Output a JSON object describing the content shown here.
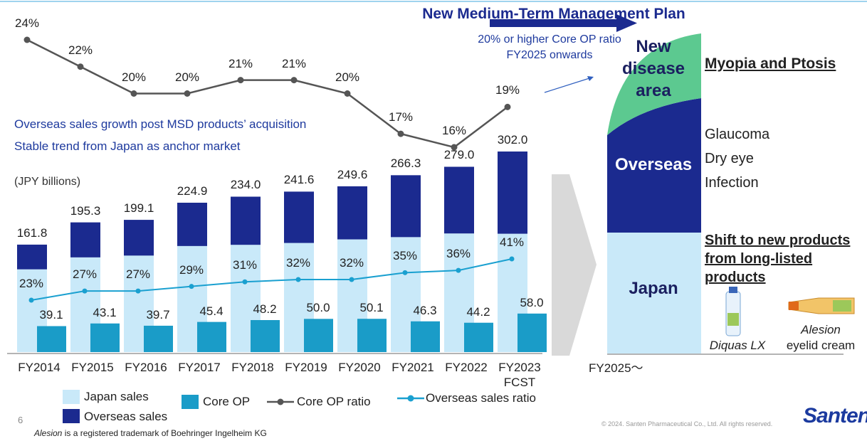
{
  "chart_data": {
    "type": "bar",
    "categories": [
      "FY2014",
      "FY2015",
      "FY2016",
      "FY2017",
      "FY2018",
      "FY2019",
      "FY2020",
      "FY2021",
      "FY2022",
      "FY2023 FCST"
    ],
    "series": [
      {
        "name": "Japan sales",
        "color": "#c9e9f9",
        "values": [
          124.6,
          142.6,
          145.3,
          159.7,
          161.5,
          164.3,
          169.7,
          173.1,
          178.6,
          178.2
        ]
      },
      {
        "name": "Overseas sales",
        "color": "#1b2a8f",
        "values": [
          37.2,
          52.7,
          53.8,
          65.2,
          72.5,
          77.3,
          79.9,
          93.2,
          100.4,
          123.8
        ]
      },
      {
        "name": "Core OP",
        "color": "#1a9cc8",
        "values": [
          39.1,
          43.1,
          39.7,
          45.4,
          48.2,
          50.0,
          50.1,
          46.3,
          44.2,
          58.0
        ],
        "value_labels": [
          "39.1",
          "43.1",
          "39.7",
          "45.4",
          "48.2",
          "50.0",
          "50.1",
          "46.3",
          "44.2",
          "58.0"
        ]
      },
      {
        "name": "Core OP ratio",
        "type": "line",
        "color": "#555555",
        "values": [
          24,
          22,
          20,
          20,
          21,
          21,
          20,
          17,
          16,
          19
        ],
        "value_labels": [
          "24%",
          "22%",
          "20%",
          "20%",
          "21%",
          "21%",
          "20%",
          "17%",
          "16%",
          "19%"
        ]
      },
      {
        "name": "Overseas sales ratio",
        "type": "line",
        "color": "#1aa0d0",
        "values": [
          23,
          27,
          27,
          29,
          31,
          32,
          32,
          35,
          36,
          41
        ],
        "value_labels": [
          "23%",
          "27%",
          "27%",
          "29%",
          "31%",
          "32%",
          "32%",
          "35%",
          "36%",
          "41%"
        ]
      }
    ],
    "totals": [
      161.8,
      195.3,
      199.1,
      224.9,
      234.0,
      241.6,
      249.6,
      266.3,
      279.0,
      302.0
    ],
    "total_labels": [
      "161.8",
      "195.3",
      "199.1",
      "224.9",
      "234.0",
      "241.6",
      "249.6",
      "266.3",
      "279.0",
      "302.0"
    ],
    "unit_label": "(JPY billions)",
    "annotations": [
      "Overseas sales growth post MSD products’ acquisition",
      "Stable trend from Japan as anchor market"
    ]
  },
  "plan": {
    "title": "New Medium-Term Management Plan",
    "target": [
      "20% or higher Core OP ratio",
      "FY2025 onwards"
    ],
    "period": "FY2025～",
    "segments": [
      {
        "label": "New disease area",
        "focus": "Myopia and Ptosis"
      },
      {
        "label": "Overseas",
        "items": [
          "Glaucoma",
          "Dry eye",
          "Infection"
        ]
      },
      {
        "label": "Japan",
        "focus": "Shift to new products from long-listed products",
        "products": [
          {
            "name": "Diquas LX"
          },
          {
            "name": "Alesion",
            "desc": "eyelid cream"
          }
        ]
      }
    ]
  },
  "footer": {
    "page": "6",
    "trademark_brand": "Alesion",
    "trademark_text": " is a registered trademark of Boehringer Ingelheim KG",
    "copyright": "© 2024. Santen Pharmaceutical Co., Ltd. All rights reserved.",
    "logo": "Santen"
  }
}
